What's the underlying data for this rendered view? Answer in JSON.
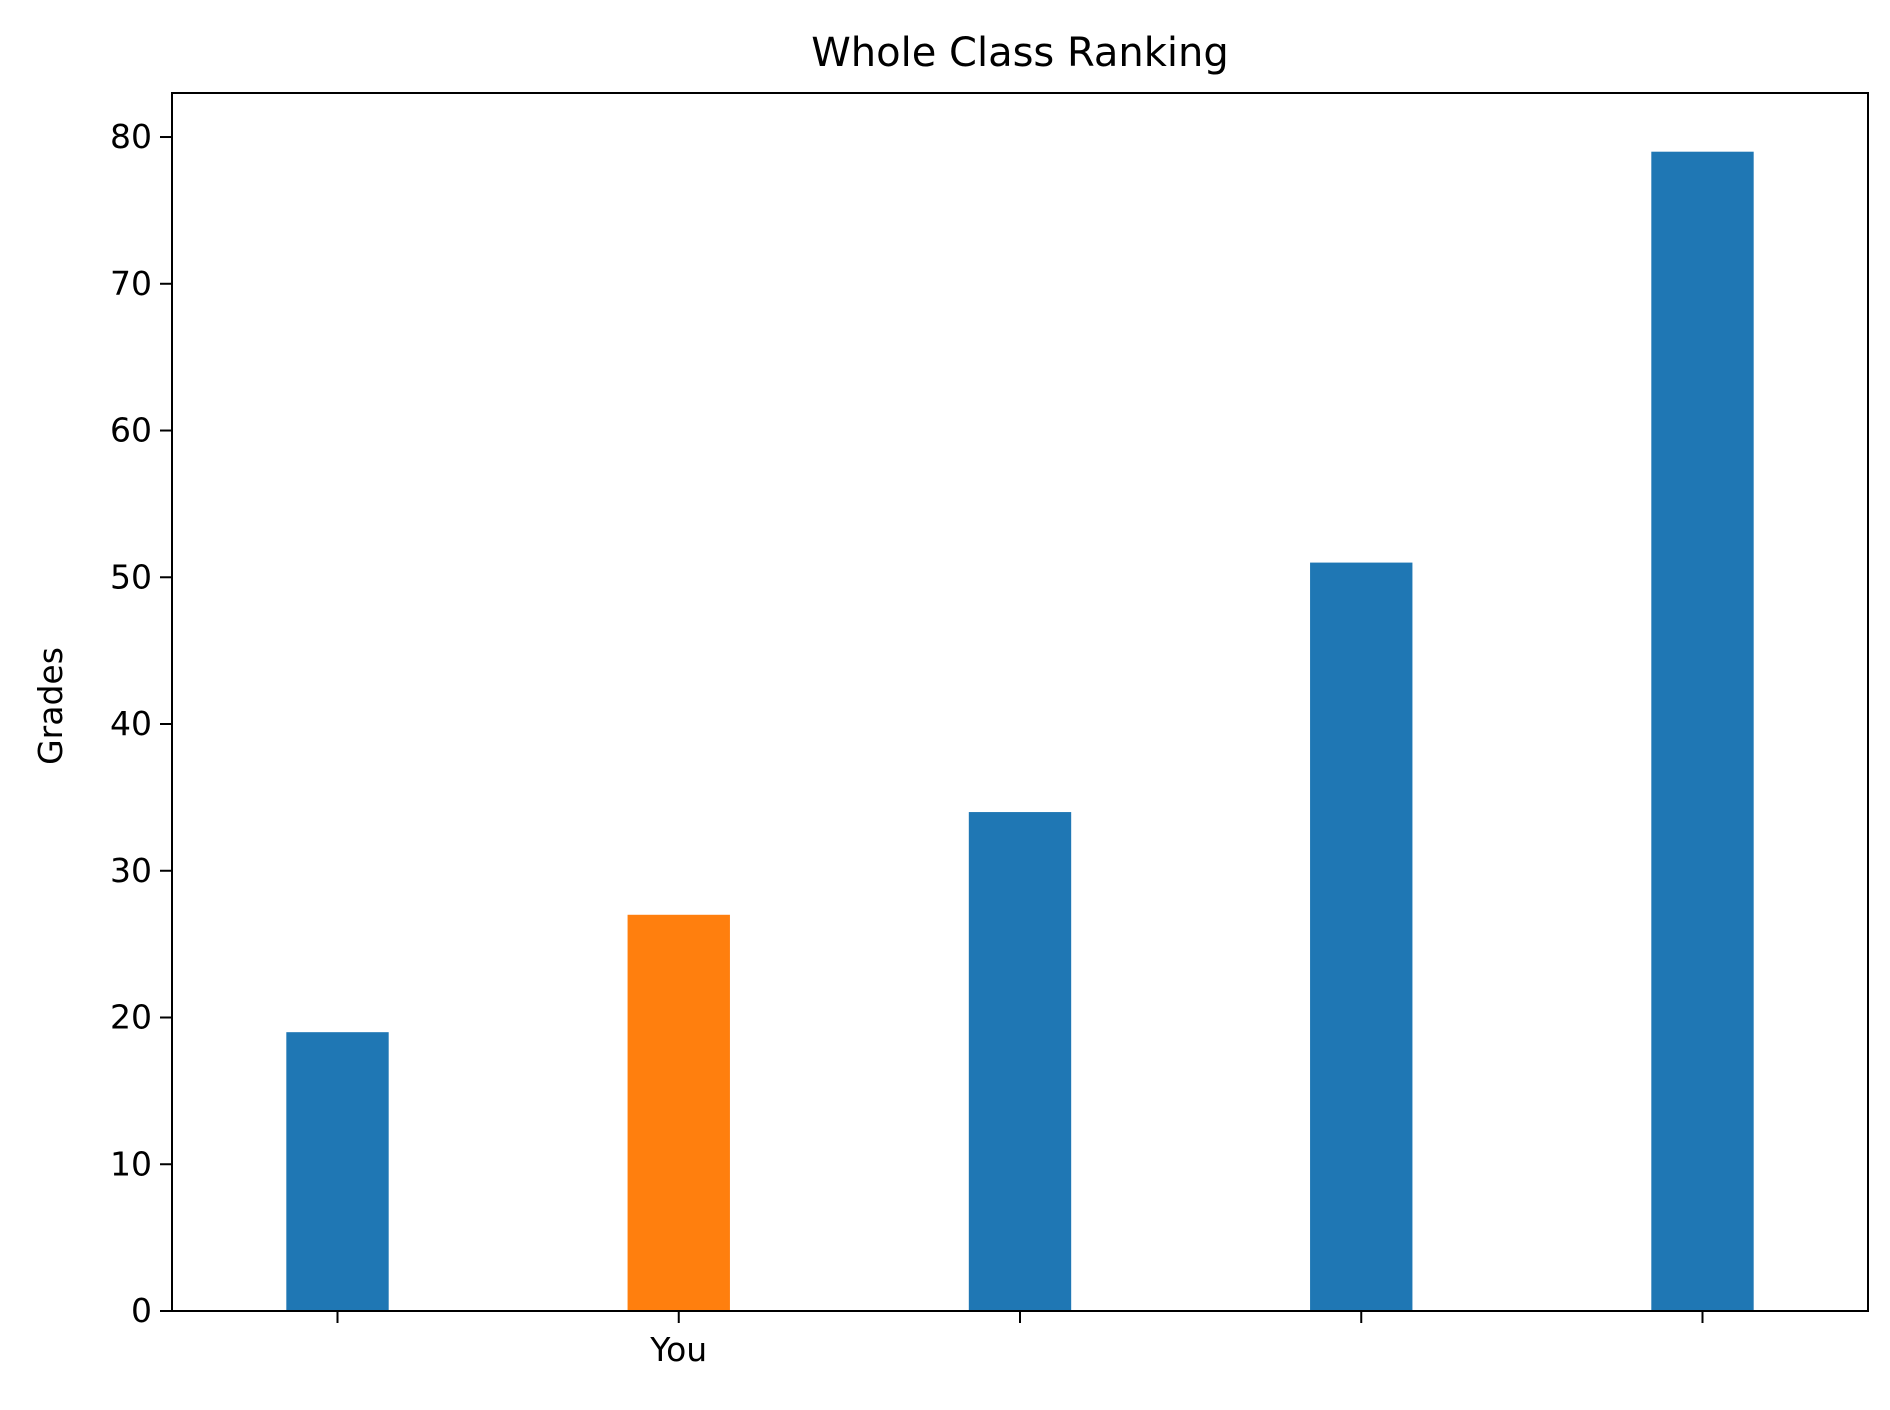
{
  "chart_data": {
    "type": "bar",
    "title": "Whole Class Ranking",
    "xlabel": "",
    "ylabel": "Grades",
    "categories": [
      "",
      "You",
      "",
      "",
      ""
    ],
    "values": [
      19,
      27,
      34,
      51,
      79
    ],
    "highlight_index": 1,
    "ylim": [
      0,
      83
    ],
    "yticks": [
      0,
      10,
      20,
      30,
      40,
      50,
      60,
      70,
      80
    ],
    "grid": false,
    "legend": "none",
    "colors": {
      "default_bar": "#1f77b4",
      "highlight_bar": "#ff7f0e",
      "axis": "#000000"
    }
  }
}
